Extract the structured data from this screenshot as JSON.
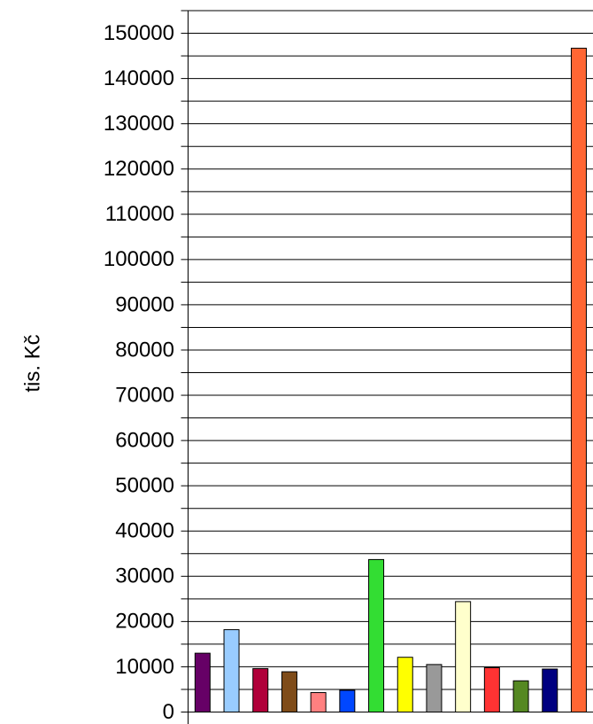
{
  "chart_data": {
    "type": "bar",
    "y_label": "tis. Kč",
    "categories": [
      null,
      null,
      null,
      null,
      null,
      null,
      null,
      null,
      null,
      null,
      null,
      null,
      null,
      null
    ],
    "values": [
      13000,
      18200,
      9600,
      8900,
      4300,
      4800,
      33700,
      12100,
      10500,
      24400,
      9800,
      6900,
      9500,
      146700
    ],
    "colors": [
      "#660066",
      "#99ccff",
      "#b0003a",
      "#7f4c19",
      "#ff8080",
      "#0047ff",
      "#33dd33",
      "#ffff00",
      "#999999",
      "#ffffcc",
      "#ff3333",
      "#558822",
      "#000080",
      "#ff6633"
    ],
    "ylim": [
      0,
      155000
    ],
    "yticks": [
      0,
      10000,
      20000,
      30000,
      40000,
      50000,
      60000,
      70000,
      80000,
      90000,
      100000,
      110000,
      120000,
      130000,
      140000,
      150000
    ],
    "minor_yticks": [
      5000,
      15000,
      25000,
      35000,
      45000,
      55000,
      65000,
      75000,
      85000,
      95000,
      105000,
      115000,
      125000,
      135000,
      145000,
      155000
    ],
    "grid": true
  }
}
